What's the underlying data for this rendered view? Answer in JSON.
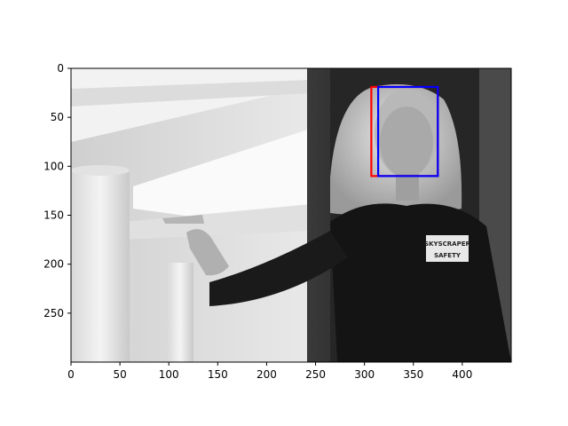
{
  "chart_data": {
    "type": "image",
    "title": "",
    "xlabel": "",
    "ylabel": "",
    "xlim": [
      0,
      450
    ],
    "ylim": [
      300,
      0
    ],
    "image_size": [
      450,
      300
    ],
    "xticks": [
      0,
      50,
      100,
      150,
      200,
      250,
      300,
      350,
      400
    ],
    "yticks": [
      0,
      50,
      100,
      150,
      200,
      250
    ],
    "image_description": "grayscale photo of a woman in a dark suit pointing to the left",
    "badge_text": [
      "SKYSCRAPER",
      "SAFETY"
    ],
    "boxes": [
      {
        "color": "#ff0000",
        "x0": 307,
        "y0": 19,
        "x1": 375,
        "y1": 110
      },
      {
        "color": "#0000ff",
        "x0": 314,
        "y0": 19,
        "x1": 375,
        "y1": 110
      }
    ]
  }
}
